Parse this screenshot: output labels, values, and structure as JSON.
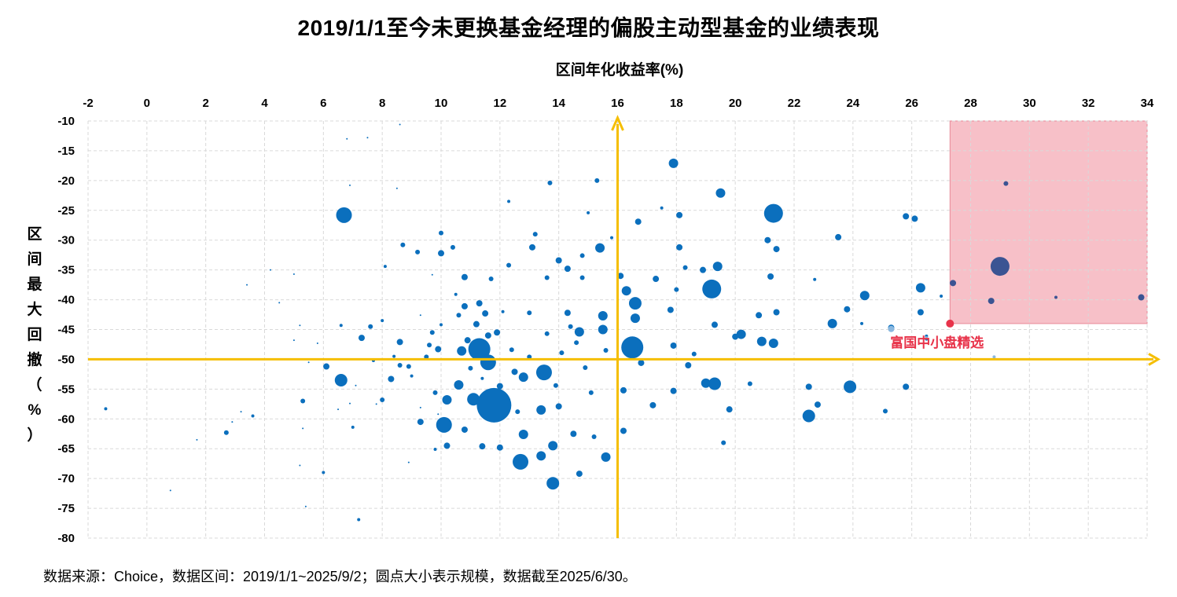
{
  "chart_data": {
    "type": "scatter",
    "title": "2019/1/1至今未更换基金经理的偏股主动型基金的业绩表现",
    "xlabel": "区间年化收益率(%)",
    "ylabel": "区间最大回撤（%）",
    "xlim": [
      -2,
      34
    ],
    "ylim": [
      -80,
      -10
    ],
    "x_ticks": [
      -2,
      0,
      2,
      4,
      6,
      8,
      10,
      12,
      14,
      16,
      18,
      20,
      22,
      24,
      26,
      28,
      30,
      32,
      34
    ],
    "y_ticks": [
      -10,
      -15,
      -20,
      -25,
      -30,
      -35,
      -40,
      -45,
      -50,
      -55,
      -60,
      -65,
      -70,
      -75,
      -80
    ],
    "x_axis_position": "top",
    "grid": true,
    "reference_lines": {
      "x": 16,
      "y": -50,
      "color": "#f5be00"
    },
    "highlight_region": {
      "x": [
        27.3,
        34
      ],
      "y": [
        -44,
        -10
      ],
      "color": "#f7c0c8"
    },
    "highlight_point": {
      "label": "富国中小盘精选",
      "x": 27.3,
      "y": -44.0,
      "color": "#e8334a"
    },
    "bubble_size_note": "圆点大小表示规模",
    "colors": {
      "main": "#0b6fbd",
      "in_region": "#3b5493",
      "faded": "#8bb8df",
      "highlight": "#e8334a",
      "reference": "#f5be00"
    },
    "points": [
      [
        -1.4,
        -58.3,
        2
      ],
      [
        0.8,
        -72,
        1
      ],
      [
        1.7,
        -63.5,
        1
      ],
      [
        2.7,
        -62.3,
        3
      ],
      [
        2.9,
        -60.5,
        1
      ],
      [
        3.2,
        -58.8,
        1
      ],
      [
        3.4,
        -37.5,
        1
      ],
      [
        3.6,
        -59.5,
        2
      ],
      [
        4.2,
        -35,
        1
      ],
      [
        4.5,
        -40.5,
        1
      ],
      [
        5,
        -35.7,
        1
      ],
      [
        5,
        -46.8,
        1
      ],
      [
        5.2,
        -44.3,
        1
      ],
      [
        5.3,
        -57,
        3
      ],
      [
        5.3,
        -61.6,
        1
      ],
      [
        5.2,
        -67.8,
        1
      ],
      [
        5.4,
        -74.7,
        1
      ],
      [
        5.5,
        -50.5,
        1
      ],
      [
        5.8,
        -47.3,
        1
      ],
      [
        6.1,
        -51.2,
        4
      ],
      [
        6,
        -69,
        2
      ],
      [
        6.5,
        -58.4,
        1
      ],
      [
        6.6,
        -44.3,
        2
      ],
      [
        6.7,
        -25.8,
        10
      ],
      [
        6.6,
        -53.5,
        8
      ],
      [
        6.8,
        -13,
        1
      ],
      [
        6.9,
        -20.8,
        1
      ],
      [
        6.9,
        -57.4,
        1
      ],
      [
        7,
        -61.4,
        2
      ],
      [
        7.1,
        -54.4,
        1
      ],
      [
        7.2,
        -76.9,
        2
      ],
      [
        7.3,
        -46.4,
        4
      ],
      [
        7.5,
        -12.8,
        1
      ],
      [
        7.6,
        -44.5,
        3
      ],
      [
        7.7,
        -50.2,
        2
      ],
      [
        7.8,
        -57.5,
        1
      ],
      [
        8,
        -56.8,
        3
      ],
      [
        8.1,
        -34.4,
        2
      ],
      [
        8,
        -43.5,
        2
      ],
      [
        8.3,
        -53.3,
        4
      ],
      [
        8.4,
        -49.5,
        2
      ],
      [
        8.5,
        -21.3,
        1
      ],
      [
        8.6,
        -51,
        3
      ],
      [
        8.6,
        -10.6,
        1
      ],
      [
        8.6,
        -47.1,
        4
      ],
      [
        8.7,
        -30.8,
        3
      ],
      [
        8.9,
        -51.2,
        3
      ],
      [
        8.9,
        -67.3,
        1
      ],
      [
        9,
        -52.8,
        2
      ],
      [
        9.3,
        -60.5,
        4
      ],
      [
        9.2,
        -32,
        3
      ],
      [
        9.3,
        -42.6,
        1
      ],
      [
        9.3,
        -58.1,
        1
      ],
      [
        9.6,
        -47.6,
        3
      ],
      [
        9.5,
        -49.6,
        3
      ],
      [
        9.7,
        -35.8,
        1
      ],
      [
        9.7,
        -45.5,
        3
      ],
      [
        9.8,
        -55.6,
        3
      ],
      [
        9.8,
        -65.1,
        2
      ],
      [
        9.9,
        -48.3,
        4
      ],
      [
        9.9,
        -59.2,
        1
      ],
      [
        10,
        -28.8,
        3
      ],
      [
        10,
        -32.2,
        4
      ],
      [
        10,
        -44.2,
        2
      ],
      [
        10.1,
        -61,
        10
      ],
      [
        10.2,
        -56.8,
        6
      ],
      [
        10.2,
        -64.5,
        4
      ],
      [
        10.4,
        -31.2,
        3
      ],
      [
        10.5,
        -39.1,
        2
      ],
      [
        10.6,
        -42.6,
        3
      ],
      [
        10.6,
        -54.3,
        6
      ],
      [
        10.7,
        -48.6,
        6
      ],
      [
        10.8,
        -36.2,
        4
      ],
      [
        10.8,
        -41.1,
        4
      ],
      [
        10.8,
        -61.8,
        4
      ],
      [
        10.9,
        -46.8,
        4
      ],
      [
        11,
        -51.5,
        3
      ],
      [
        11.1,
        -56.7,
        8
      ],
      [
        11.2,
        -44.1,
        4
      ],
      [
        11.2,
        -49.3,
        6
      ],
      [
        11.3,
        -48.3,
        14
      ],
      [
        11.3,
        -40.6,
        4
      ],
      [
        11.4,
        -53.2,
        2
      ],
      [
        11.4,
        -64.6,
        4
      ],
      [
        11.5,
        -42.3,
        4
      ],
      [
        11.6,
        -46,
        4
      ],
      [
        11.6,
        -50.5,
        10
      ],
      [
        11.7,
        -36.5,
        3
      ],
      [
        11.8,
        -57.7,
        22
      ],
      [
        11.9,
        -45.5,
        4
      ],
      [
        12,
        -54.5,
        4
      ],
      [
        12,
        -64.8,
        4
      ],
      [
        12.1,
        -42,
        2
      ],
      [
        12.3,
        -23.5,
        2
      ],
      [
        12.3,
        -34.2,
        3
      ],
      [
        12.4,
        -48.4,
        3
      ],
      [
        12.5,
        -52.1,
        4
      ],
      [
        12.6,
        -58.8,
        3
      ],
      [
        12.7,
        -67.2,
        10
      ],
      [
        12.8,
        -53,
        6
      ],
      [
        12.8,
        -62.6,
        6
      ],
      [
        13,
        -49.6,
        3
      ],
      [
        13,
        -42.2,
        3
      ],
      [
        13.1,
        -31.2,
        4
      ],
      [
        13.2,
        -29,
        3
      ],
      [
        13.4,
        -66.2,
        6
      ],
      [
        13.4,
        -58.5,
        6
      ],
      [
        13.5,
        -52.2,
        10
      ],
      [
        13.6,
        -45.7,
        3
      ],
      [
        13.6,
        -36.3,
        3
      ],
      [
        13.7,
        -20.4,
        3
      ],
      [
        13.8,
        -70.8,
        8
      ],
      [
        13.8,
        -64.5,
        6
      ],
      [
        13.9,
        -54.4,
        3
      ],
      [
        14,
        -57.9,
        4
      ],
      [
        14,
        -33.4,
        4
      ],
      [
        14.1,
        -48.9,
        3
      ],
      [
        14.3,
        -42.2,
        4
      ],
      [
        14.3,
        -34.8,
        4
      ],
      [
        14.4,
        -44.5,
        3
      ],
      [
        14.5,
        -62.5,
        4
      ],
      [
        14.6,
        -47.2,
        3
      ],
      [
        14.7,
        -45.4,
        6
      ],
      [
        14.7,
        -69.2,
        4
      ],
      [
        14.8,
        -36.3,
        3
      ],
      [
        14.8,
        -32.6,
        3
      ],
      [
        14.9,
        -51.4,
        3
      ],
      [
        15,
        -25.4,
        2
      ],
      [
        15.1,
        -55.6,
        3
      ],
      [
        15.2,
        -63,
        3
      ],
      [
        15.3,
        -20,
        3
      ],
      [
        15.4,
        -31.3,
        6
      ],
      [
        15.5,
        -42.7,
        6
      ],
      [
        15.5,
        -45,
        6
      ],
      [
        15.6,
        -66.4,
        6
      ],
      [
        15.6,
        -48.5,
        3
      ],
      [
        15.8,
        -29.6,
        2
      ],
      [
        16.1,
        -36,
        4
      ],
      [
        16.2,
        -55.2,
        4
      ],
      [
        16.2,
        -62,
        4
      ],
      [
        16.3,
        -38.5,
        6
      ],
      [
        16.5,
        -48,
        14
      ],
      [
        16.6,
        -43.1,
        6
      ],
      [
        16.6,
        -40.6,
        8
      ],
      [
        16.7,
        -26.9,
        4
      ],
      [
        16.8,
        -50.6,
        4
      ],
      [
        17.2,
        -57.7,
        4
      ],
      [
        17.3,
        -36.5,
        4
      ],
      [
        17.5,
        -24.6,
        2
      ],
      [
        17.8,
        -41.7,
        4
      ],
      [
        17.9,
        -17.1,
        6
      ],
      [
        17.9,
        -55.3,
        4
      ],
      [
        17.9,
        -47.7,
        4
      ],
      [
        18,
        -38.3,
        3
      ],
      [
        18.1,
        -25.8,
        4
      ],
      [
        18.1,
        -31.2,
        4
      ],
      [
        18.3,
        -34.6,
        3
      ],
      [
        18.4,
        -51,
        4
      ],
      [
        18.6,
        -49.1,
        3
      ],
      [
        18.9,
        -35,
        4
      ],
      [
        19,
        -54,
        6
      ],
      [
        19.2,
        -38.2,
        12
      ],
      [
        19.3,
        -54.1,
        8
      ],
      [
        19.3,
        -44.2,
        4
      ],
      [
        19.4,
        -34.4,
        6
      ],
      [
        19.5,
        -22.1,
        6
      ],
      [
        19.6,
        -64,
        3
      ],
      [
        19.8,
        -58.4,
        4
      ],
      [
        20,
        -46.2,
        4
      ],
      [
        20.2,
        -45.8,
        6
      ],
      [
        20.5,
        -54.1,
        3
      ],
      [
        20.8,
        -42.6,
        4
      ],
      [
        20.9,
        -47,
        6
      ],
      [
        21.1,
        -30,
        4
      ],
      [
        21.2,
        -36.1,
        4
      ],
      [
        21.3,
        -25.5,
        12
      ],
      [
        21.3,
        -47.3,
        6
      ],
      [
        21.4,
        -31.5,
        4
      ],
      [
        21.4,
        -42.1,
        4
      ],
      [
        22.5,
        -54.6,
        4
      ],
      [
        22.5,
        -59.5,
        8
      ],
      [
        22.8,
        -57.6,
        4
      ],
      [
        22.7,
        -36.6,
        2
      ],
      [
        23.3,
        -44,
        6
      ],
      [
        23.5,
        -29.5,
        4
      ],
      [
        23.8,
        -41.6,
        4
      ],
      [
        23.9,
        -54.6,
        8
      ],
      [
        24.3,
        -44,
        2
      ],
      [
        24.4,
        -39.3,
        6
      ],
      [
        25.1,
        -58.7,
        3
      ],
      [
        25.3,
        -44.7,
        4
      ],
      [
        25.8,
        -54.6,
        4
      ],
      [
        25.8,
        -26,
        4
      ],
      [
        26.1,
        -26.4,
        4
      ],
      [
        26.3,
        -42.1,
        4
      ],
      [
        26.3,
        -38,
        6
      ],
      [
        26.5,
        -46.1,
        2
      ],
      [
        26.5,
        -46.6,
        2
      ],
      [
        27,
        -39.4,
        2
      ]
    ],
    "region_points": [
      [
        27.4,
        -37.2,
        4
      ],
      [
        28.7,
        -40.2,
        4
      ],
      [
        29,
        -34.4,
        12
      ],
      [
        29.2,
        -20.5,
        3
      ],
      [
        30.9,
        -39.6,
        2
      ],
      [
        33.8,
        -39.6,
        4
      ]
    ],
    "faded_points": [
      [
        25.3,
        -44.9,
        4
      ],
      [
        26.5,
        -46.4,
        2
      ],
      [
        28.8,
        -49.6,
        2
      ]
    ]
  },
  "footer": {
    "source_note": "数据来源：Choice，数据区间：2019/1/1~2025/9/2；圆点大小表示规模，数据截至2025/6/30。"
  }
}
